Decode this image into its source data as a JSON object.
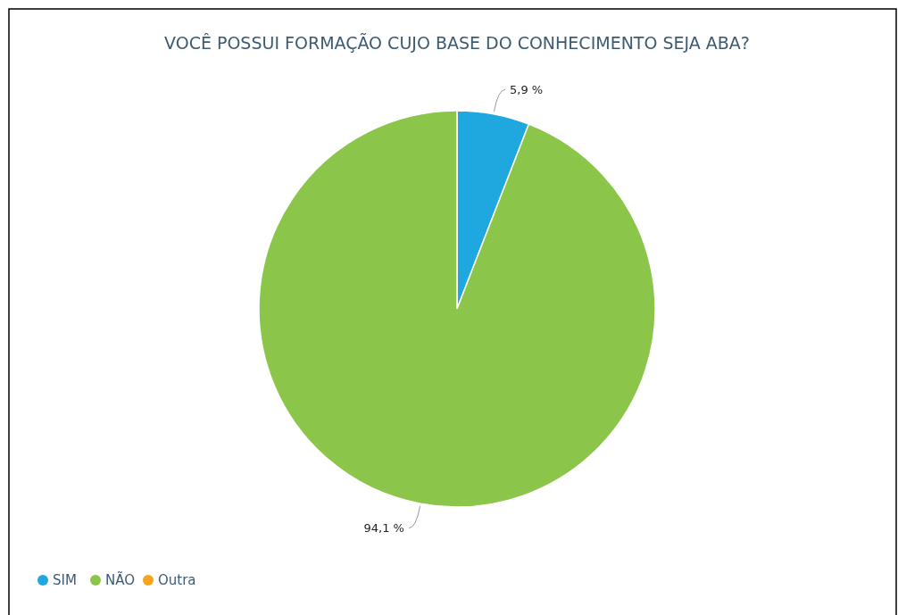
{
  "chart_data": {
    "type": "pie",
    "title": "VOCÊ POSSUI FORMAÇÃO CUJO BASE DO CONHECIMENTO SEJA ABA?",
    "categories": [
      "SIM",
      "NÃO",
      "Outra"
    ],
    "values": [
      5.9,
      94.1,
      0
    ],
    "colors": [
      "#1fa8e0",
      "#8bc54a",
      "#f7a41d"
    ],
    "value_labels": [
      "5,9 %",
      "94,1 %",
      null
    ],
    "legend": "bottom left"
  }
}
